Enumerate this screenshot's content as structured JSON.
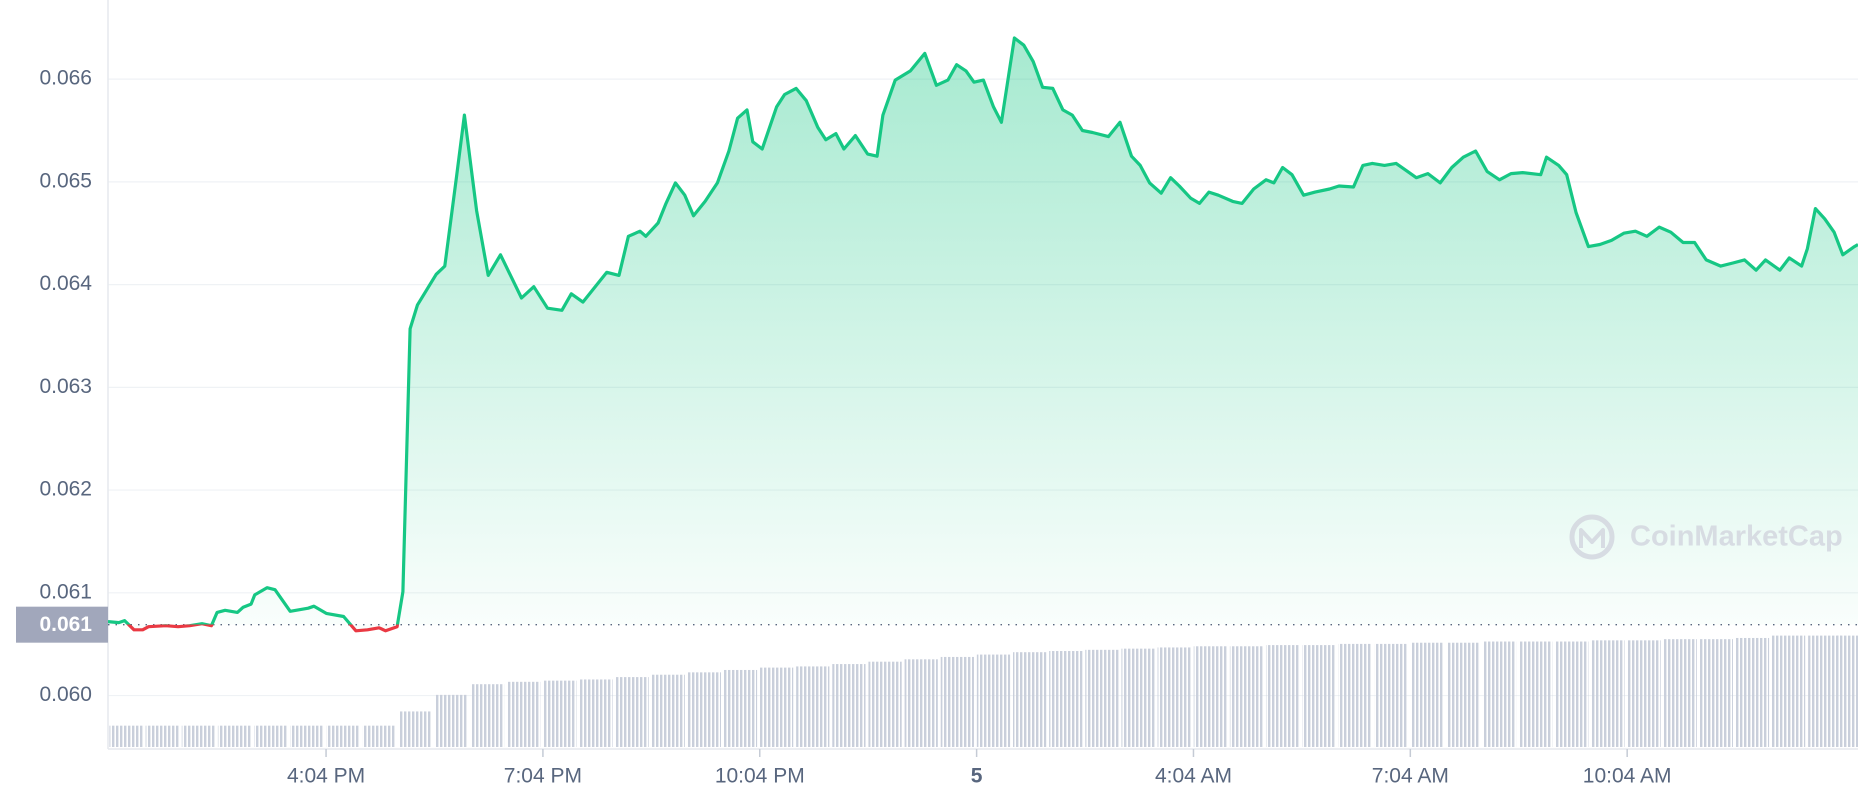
{
  "chart_data": {
    "type": "line",
    "watermark": "CoinMarketCap",
    "color": "#16c784",
    "down_color": "#ea3943",
    "grid": true,
    "xlim": [
      13.05,
      37.26
    ],
    "ylim": [
      0.05948,
      0.06677
    ],
    "xticks": [
      {
        "value": 16.0667,
        "label": "4:04 PM"
      },
      {
        "value": 19.0667,
        "label": "7:04 PM"
      },
      {
        "value": 22.0667,
        "label": "10:04 PM"
      },
      {
        "value": 25.0667,
        "label": "5"
      },
      {
        "value": 28.0667,
        "label": "4:04 AM"
      },
      {
        "value": 31.0667,
        "label": "7:04 AM"
      },
      {
        "value": 34.0667,
        "label": "10:04 AM"
      }
    ],
    "yticks": [
      {
        "value": 0.06,
        "label": "0.060"
      },
      0.061,
      0.062,
      0.063,
      0.064,
      0.065,
      0.066
    ],
    "current_price": {
      "value": 0.06069,
      "label": "0.061"
    },
    "x": [
      13.05,
      13.2,
      13.28,
      13.41,
      13.53,
      13.61,
      13.85,
      14.02,
      14.18,
      14.35,
      14.48,
      14.56,
      14.67,
      14.84,
      14.92,
      15.03,
      15.08,
      15.25,
      15.36,
      15.57,
      15.82,
      15.9,
      16.07,
      16.31,
      16.48,
      16.64,
      16.8,
      16.89,
      17.05,
      17.13,
      17.23,
      17.33,
      17.46,
      17.59,
      17.71,
      17.87,
      17.98,
      18.15,
      18.31,
      18.48,
      18.77,
      18.94,
      19.13,
      19.33,
      19.46,
      19.62,
      19.79,
      19.95,
      20.12,
      20.25,
      20.41,
      20.49,
      20.66,
      20.77,
      20.9,
      21.03,
      21.15,
      21.31,
      21.48,
      21.64,
      21.76,
      21.89,
      21.97,
      22.1,
      22.3,
      22.41,
      22.57,
      22.71,
      22.87,
      22.98,
      23.12,
      23.23,
      23.39,
      23.56,
      23.69,
      23.77,
      23.94,
      24.15,
      24.35,
      24.51,
      24.67,
      24.79,
      24.92,
      25.03,
      25.16,
      25.3,
      25.41,
      25.59,
      25.72,
      25.85,
      25.98,
      26.12,
      26.26,
      26.39,
      26.53,
      26.67,
      26.89,
      27.05,
      27.21,
      27.33,
      27.46,
      27.62,
      27.75,
      27.87,
      28.03,
      28.15,
      28.28,
      28.41,
      28.61,
      28.74,
      28.9,
      29.07,
      29.18,
      29.3,
      29.43,
      29.59,
      29.75,
      29.95,
      30.08,
      30.28,
      30.41,
      30.54,
      30.71,
      30.87,
      31.03,
      31.15,
      31.31,
      31.48,
      31.64,
      31.8,
      31.97,
      32.13,
      32.3,
      32.46,
      32.62,
      32.87,
      32.95,
      33.12,
      33.23,
      33.36,
      33.53,
      33.69,
      33.85,
      34.02,
      34.18,
      34.34,
      34.51,
      34.67,
      34.84,
      35.0,
      35.16,
      35.36,
      35.53,
      35.69,
      35.85,
      35.98,
      36.18,
      36.31,
      36.48,
      36.56,
      36.67,
      36.8,
      36.93,
      37.05,
      37.21,
      37.26
    ],
    "values": [
      0.06072,
      0.06071,
      0.06073,
      0.06064,
      0.06064,
      0.06067,
      0.06068,
      0.06067,
      0.06068,
      0.0607,
      0.06068,
      0.06081,
      0.06083,
      0.06081,
      0.06086,
      0.06089,
      0.06098,
      0.06105,
      0.06103,
      0.06082,
      0.06085,
      0.06087,
      0.0608,
      0.06077,
      0.06063,
      0.06064,
      0.06066,
      0.06063,
      0.06067,
      0.06101,
      0.06357,
      0.0638,
      0.06395,
      0.0641,
      0.06418,
      0.06504,
      0.06565,
      0.06472,
      0.06409,
      0.06429,
      0.06387,
      0.06398,
      0.06377,
      0.06375,
      0.06391,
      0.06383,
      0.06398,
      0.06412,
      0.06409,
      0.06447,
      0.06452,
      0.06447,
      0.0646,
      0.06479,
      0.06499,
      0.06487,
      0.06467,
      0.06481,
      0.06499,
      0.0653,
      0.06562,
      0.0657,
      0.06539,
      0.06532,
      0.06573,
      0.06585,
      0.06591,
      0.06579,
      0.06553,
      0.06541,
      0.06547,
      0.06532,
      0.06545,
      0.06527,
      0.06525,
      0.06565,
      0.06599,
      0.06608,
      0.06625,
      0.06594,
      0.06599,
      0.06614,
      0.06608,
      0.06597,
      0.06599,
      0.06573,
      0.06558,
      0.0664,
      0.06633,
      0.06617,
      0.06592,
      0.06591,
      0.0657,
      0.06565,
      0.0655,
      0.06548,
      0.06544,
      0.06558,
      0.06525,
      0.06516,
      0.06499,
      0.06489,
      0.06504,
      0.06496,
      0.06484,
      0.06479,
      0.0649,
      0.06487,
      0.06481,
      0.06479,
      0.06493,
      0.06502,
      0.06499,
      0.06514,
      0.06507,
      0.06487,
      0.0649,
      0.06493,
      0.06496,
      0.06495,
      0.06516,
      0.06518,
      0.06516,
      0.06518,
      0.0651,
      0.06504,
      0.06508,
      0.06499,
      0.06514,
      0.06524,
      0.0653,
      0.0651,
      0.06502,
      0.06508,
      0.06509,
      0.06507,
      0.06524,
      0.06516,
      0.06507,
      0.0647,
      0.06437,
      0.06439,
      0.06443,
      0.0645,
      0.06452,
      0.06447,
      0.06456,
      0.06451,
      0.06441,
      0.06441,
      0.06424,
      0.06418,
      0.06421,
      0.06424,
      0.06414,
      0.06424,
      0.06414,
      0.06426,
      0.06418,
      0.06435,
      0.06474,
      0.06464,
      0.06451,
      0.06429,
      0.06437,
      0.06439
    ],
    "volume": {
      "color": "#c9cfdb",
      "x": [
        13.3,
        13.8,
        14.3,
        14.8,
        15.3,
        15.8,
        16.3,
        16.8,
        17.3,
        17.8,
        18.3,
        18.8,
        19.3,
        19.8,
        20.3,
        20.8,
        21.3,
        21.8,
        22.3,
        22.8,
        23.3,
        23.8,
        24.3,
        24.8,
        25.3,
        25.8,
        26.3,
        26.8,
        27.3,
        27.8,
        28.3,
        28.8,
        29.3,
        29.8,
        30.3,
        30.8,
        31.3,
        31.8,
        32.3,
        32.8,
        33.3,
        33.8,
        34.3,
        34.8,
        35.3,
        35.8,
        36.3,
        36.8,
        37.2
      ],
      "values": [
        18,
        18,
        18,
        18,
        18,
        18,
        18,
        18,
        30,
        44,
        53,
        55,
        56,
        57,
        59,
        61,
        63,
        65,
        67,
        68,
        70,
        72,
        74,
        76,
        78,
        80,
        81,
        82,
        83,
        84,
        85,
        85,
        86,
        86,
        87,
        87,
        88,
        88,
        89,
        89,
        89,
        90,
        90,
        91,
        91,
        92,
        94,
        94,
        94
      ]
    }
  }
}
